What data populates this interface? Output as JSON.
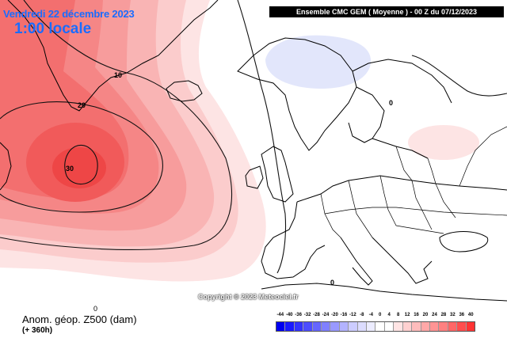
{
  "header": {
    "model": "Ensemble CMC GEM  ( Moyenne )  -  00 Z du 07/12/2023"
  },
  "titles": {
    "date": "Vendredi 22 décembre 2023",
    "local_time": "1:00 locale"
  },
  "footer": {
    "variable": "Anom. géop. Z500 (dam)",
    "lead_time": "(+ 360h)",
    "zero_mark": "0",
    "copyright": "Copyright © 2023 Meteociel.fr"
  },
  "contour_labels": {
    "c10": "10",
    "c20": "20",
    "c30": "30",
    "c0a": "0",
    "c0b": "0"
  },
  "legend": {
    "ticks": [
      "-44",
      "-40",
      "-36",
      "-32",
      "-28",
      "-24",
      "-20",
      "-16",
      "-12",
      "-8",
      "-4",
      "0",
      "4",
      "8",
      "12",
      "16",
      "20",
      "24",
      "28",
      "32",
      "36",
      "40"
    ],
    "colors": [
      "#0000f0",
      "#1a1aff",
      "#3333ff",
      "#4d4dff",
      "#6666ff",
      "#8080ff",
      "#9999ff",
      "#b3b3ff",
      "#ccccff",
      "#dcdcff",
      "#ececff",
      "#ffffff",
      "#ffffff",
      "#ffe4e4",
      "#ffd0d0",
      "#ffbcbc",
      "#ffa8a8",
      "#ff9494",
      "#ff8080",
      "#ff6666",
      "#ff4d4d",
      "#ff3333"
    ]
  },
  "palette": {
    "anomaly_strong": "#f0424a",
    "anomaly_light": "#fde2e2",
    "negative_anomaly": "#e2e6fb",
    "title_blue": "#1a6cff"
  }
}
